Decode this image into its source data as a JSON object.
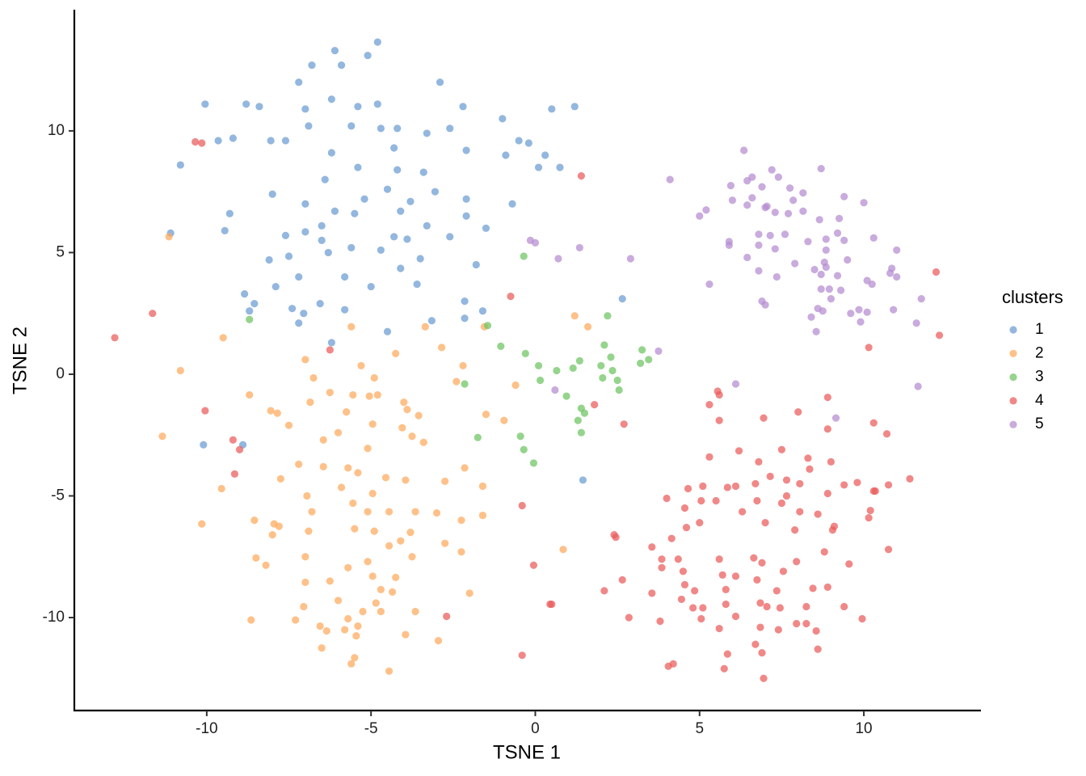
{
  "chart_data": {
    "type": "scatter",
    "x_label": "TSNE 1",
    "y_label": "TSNE 2",
    "legend_title": "clusters",
    "legend_position": "right",
    "xlim": [
      -14.03,
      13.54
    ],
    "ylim": [
      -13.82,
      14.98
    ],
    "xticks": [
      -10,
      -5,
      0,
      5,
      10
    ],
    "yticks": [
      -10,
      -5,
      0,
      5,
      10
    ],
    "grid": false,
    "series": [
      {
        "name": "1",
        "color": "#6a9bd1",
        "x": [
          -4.8,
          -5.1,
          -6.1,
          -6.8,
          -5.9,
          -7.2,
          -2.9,
          -10.05,
          -8.8,
          -8.4,
          -7.0,
          -6.2,
          -5.4,
          -4.8,
          -2.2,
          0.5,
          1.2,
          -1.0,
          -6.9,
          -5.6,
          -4.7,
          -4.2,
          -3.3,
          -2.6,
          -9.65,
          -9.2,
          -8.05,
          -7.6,
          -10.8,
          -6.2,
          -4.3,
          -2.1,
          -0.5,
          -0.2,
          -0.9,
          0.3,
          0.1,
          0.75,
          -5.4,
          -4.2,
          -3.4,
          -6.4,
          -8.0,
          -5.2,
          -4.5,
          -3.8,
          -3.05,
          -2.1,
          -0.7,
          -7.0,
          -6.1,
          -5.5,
          -4.1,
          -9.3,
          -11.1,
          -9.45,
          -7.6,
          -7.0,
          -6.5,
          -2.1,
          -1.5,
          -8.1,
          -7.5,
          -6.5,
          -6.3,
          -5.6,
          -4.7,
          -4.3,
          -3.9,
          -3.3,
          -2.6,
          -3.5,
          -1.8,
          -8.85,
          -7.9,
          -7.2,
          -5.8,
          -5.0,
          -4.1,
          -3.6,
          -8.55,
          -8.7,
          -7.4,
          -7.05,
          -6.55,
          -5.8,
          -7.2,
          -2.15,
          -1.6,
          -2.15,
          -3.15,
          -4.5,
          2.65,
          -6.2,
          -10.1,
          -8.9,
          1.45
        ],
        "values": [
          13.65,
          13.1,
          13.3,
          12.7,
          12.7,
          12.0,
          12.0,
          11.1,
          11.1,
          11.0,
          10.9,
          11.3,
          11.0,
          11.1,
          11.0,
          10.9,
          11.0,
          10.5,
          10.2,
          10.2,
          10.1,
          10.1,
          9.9,
          10.1,
          9.6,
          9.7,
          9.6,
          9.6,
          8.6,
          9.1,
          9.3,
          9.2,
          9.6,
          9.5,
          9.0,
          9.0,
          8.5,
          8.5,
          8.5,
          8.4,
          8.3,
          8.0,
          7.4,
          7.2,
          7.6,
          7.1,
          7.5,
          7.2,
          7.0,
          7.0,
          6.7,
          6.6,
          6.7,
          6.6,
          5.8,
          5.9,
          5.7,
          5.85,
          6.1,
          6.5,
          6.0,
          4.7,
          4.85,
          5.5,
          5.0,
          5.2,
          5.1,
          5.65,
          5.55,
          6.1,
          5.65,
          4.75,
          4.5,
          3.3,
          3.6,
          4.0,
          4.0,
          3.6,
          4.35,
          3.7,
          2.9,
          2.6,
          2.7,
          2.5,
          2.9,
          2.65,
          2.1,
          3.0,
          2.6,
          2.3,
          2.2,
          1.75,
          3.1,
          1.3,
          -2.9,
          -2.9,
          -4.35
        ]
      },
      {
        "name": "2",
        "color": "#fda95c",
        "x": [
          -11.15,
          -9.5,
          -5.6,
          -3.35,
          -1.55,
          1.2,
          1.6,
          -10.8,
          -7.0,
          -5.3,
          -4.25,
          -2.85,
          -2.2,
          -6.75,
          -4.9,
          -8.7,
          -6.25,
          -5.55,
          -5.05,
          -4.8,
          -4.0,
          -2.4,
          -0.6,
          -8.05,
          -7.85,
          -6.85,
          -5.75,
          -4.95,
          -3.9,
          -3.55,
          -1.5,
          -0.95,
          -11.35,
          -7.5,
          -6.45,
          -6.0,
          -5.1,
          -4.05,
          -3.75,
          -3.4,
          -7.2,
          -6.45,
          -5.7,
          -5.4,
          -4.55,
          -3.95,
          -2.15,
          -9.55,
          -7.75,
          -6.95,
          -5.9,
          -4.95,
          -2.75,
          -1.6,
          -8.55,
          -7.95,
          -6.8,
          -5.55,
          -5.1,
          -4.45,
          -3.65,
          -3.0,
          -2.25,
          -1.6,
          -10.15,
          -7.8,
          -8.0,
          -6.9,
          -5.5,
          -4.9,
          -3.8,
          -2.75,
          -4.1,
          -8.5,
          -8.2,
          -7.0,
          -5.7,
          -5.1,
          -4.45,
          -3.75,
          -2.25,
          0.85,
          -7.0,
          -6.25,
          -4.95,
          -4.25,
          -4.7,
          -4.35,
          -7.05,
          -6.0,
          -4.85,
          -3.65,
          -2.0,
          -8.65,
          -7.3,
          -5.7,
          -5.25,
          -4.7,
          -6.55,
          -6.35,
          -5.4,
          -5.8,
          -3.95,
          -6.5,
          -5.45,
          -2.95,
          -5.5,
          -5.6,
          -4.45
        ],
        "values": [
          5.65,
          1.5,
          1.95,
          1.95,
          1.95,
          2.4,
          1.95,
          0.15,
          0.6,
          0.35,
          0.85,
          1.1,
          0.35,
          -0.15,
          -0.15,
          -0.85,
          -0.75,
          -0.85,
          -0.9,
          -0.85,
          -1.15,
          -0.3,
          -0.45,
          -1.5,
          -1.6,
          -1.15,
          -1.55,
          -2.05,
          -1.45,
          -1.7,
          -1.65,
          -1.9,
          -2.55,
          -2.1,
          -2.7,
          -2.4,
          -3.05,
          -2.2,
          -2.55,
          -2.8,
          -3.7,
          -3.8,
          -3.85,
          -4.05,
          -4.25,
          -4.35,
          -3.85,
          -4.7,
          -4.3,
          -5.0,
          -4.65,
          -4.9,
          -4.4,
          -4.6,
          -6.0,
          -6.15,
          -5.65,
          -5.3,
          -5.65,
          -5.65,
          -5.65,
          -5.7,
          -6.0,
          -5.8,
          -6.15,
          -6.25,
          -6.6,
          -6.45,
          -6.35,
          -6.45,
          -6.5,
          -6.95,
          -6.85,
          -7.55,
          -7.85,
          -7.5,
          -7.95,
          -7.7,
          -7.05,
          -7.5,
          -7.3,
          -7.2,
          -8.55,
          -8.5,
          -8.3,
          -8.35,
          -8.85,
          -8.95,
          -9.55,
          -9.3,
          -9.4,
          -9.75,
          -9.0,
          -10.1,
          -10.1,
          -10.05,
          -9.75,
          -9.75,
          -10.35,
          -10.55,
          -10.35,
          -10.5,
          -10.7,
          -11.25,
          -10.75,
          -10.95,
          -11.65,
          -11.9,
          -12.2
        ]
      },
      {
        "name": "3",
        "color": "#6cc35f",
        "x": [
          -8.7,
          -0.35,
          2.2,
          -1.45,
          -1.05,
          -0.3,
          2.1,
          3.25,
          1.35,
          2.3,
          3.45,
          0.1,
          0.65,
          1.15,
          2.0,
          3.2,
          -2.15,
          0.15,
          2.35,
          2.05,
          2.5,
          0.95,
          2.55,
          1.4,
          1.5,
          1.3,
          1.4,
          -0.45,
          -1.75,
          -0.35,
          -0.05
        ],
        "values": [
          2.25,
          4.85,
          2.4,
          2.0,
          1.15,
          0.85,
          1.2,
          1.0,
          0.55,
          0.7,
          0.6,
          0.35,
          0.15,
          0.25,
          0.35,
          0.45,
          -0.4,
          -0.25,
          0.15,
          -0.15,
          -0.25,
          -0.9,
          -0.65,
          -1.4,
          -1.6,
          -1.9,
          -2.4,
          -2.55,
          -2.6,
          -3.1,
          -3.65
        ]
      },
      {
        "name": "4",
        "color": "#ea5a5a",
        "x": [
          -12.8,
          -11.65,
          -10.35,
          -10.15,
          1.4,
          -0.75,
          -6.25,
          -10.05,
          -9.2,
          -9.0,
          -9.15,
          12.2,
          12.3,
          10.15,
          1.8,
          2.7,
          5.55,
          5.6,
          5.3,
          5.6,
          8.9,
          8.0,
          6.95,
          8.9,
          10.3,
          10.7,
          6.2,
          7.5,
          5.3,
          6.8,
          8.3,
          9.0,
          8.35,
          7.15,
          5.1,
          5.85,
          6.1,
          6.7,
          7.65,
          8.05,
          9.4,
          9.8,
          10.3,
          10.75,
          11.4,
          4.65,
          4.0,
          5.05,
          5.5,
          6.75,
          7.65,
          8.9,
          10.35,
          -0.4,
          4.55,
          6.3,
          7.5,
          8.05,
          8.6,
          10.2,
          10.15,
          5.0,
          4.6,
          7.0,
          7.9,
          9.1,
          9.05,
          2.4,
          2.45,
          3.55,
          4.15,
          10.75,
          3.85,
          4.35,
          5.6,
          6.65,
          6.9,
          7.95,
          8.8,
          9.55,
          -0.05,
          3.85,
          4.5,
          5.7,
          6.1,
          6.75,
          7.55,
          2.65,
          4.55,
          8.9,
          2.1,
          3.55,
          4.85,
          5.8,
          7.35,
          8.45,
          4.45,
          4.8,
          5.1,
          5.8,
          6.85,
          7.05,
          7.45,
          8.25,
          9.4,
          0.45,
          0.5,
          -2.7,
          2.85,
          3.8,
          5.05,
          6.1,
          7.4,
          7.95,
          8.25,
          8.55,
          9.95,
          5.6,
          6.85,
          8.6,
          6.7,
          6.9,
          5.85,
          -0.4,
          4.2,
          4.05,
          5.75,
          6.95
        ],
        "values": [
          1.5,
          2.5,
          9.55,
          9.5,
          8.15,
          3.2,
          1.0,
          -1.5,
          -2.7,
          -3.1,
          -4.1,
          4.2,
          1.6,
          1.1,
          -1.25,
          -2.05,
          -0.7,
          -0.85,
          -1.25,
          -1.9,
          -0.95,
          -1.55,
          -1.8,
          -2.25,
          -2.0,
          -2.45,
          -3.15,
          -3.1,
          -3.4,
          -3.6,
          -3.45,
          -3.6,
          -3.9,
          -4.2,
          -4.6,
          -4.65,
          -4.6,
          -4.5,
          -4.35,
          -4.5,
          -4.55,
          -4.45,
          -4.8,
          -4.55,
          -4.3,
          -4.7,
          -5.1,
          -5.2,
          -5.2,
          -5.2,
          -5.0,
          -4.9,
          -4.8,
          -5.4,
          -5.5,
          -5.65,
          -5.3,
          -5.65,
          -5.75,
          -5.6,
          -5.9,
          -6.1,
          -6.3,
          -6.1,
          -6.4,
          -6.25,
          -6.4,
          -6.6,
          -6.7,
          -7.1,
          -6.75,
          -7.2,
          -7.6,
          -7.6,
          -7.6,
          -7.55,
          -7.75,
          -7.7,
          -7.3,
          -7.8,
          -7.85,
          -7.95,
          -8.1,
          -8.25,
          -8.3,
          -8.45,
          -8.1,
          -8.45,
          -8.65,
          -8.75,
          -8.9,
          -9.0,
          -8.9,
          -8.85,
          -8.9,
          -8.8,
          -9.25,
          -9.6,
          -9.6,
          -9.45,
          -9.4,
          -9.55,
          -9.6,
          -9.55,
          -9.55,
          -9.45,
          -9.45,
          -9.95,
          -10.0,
          -10.15,
          -10.05,
          -9.95,
          -10.5,
          -10.25,
          -10.25,
          -10.55,
          -10.05,
          -10.45,
          -10.4,
          -11.3,
          -11.1,
          -11.45,
          -11.5,
          -11.55,
          -11.9,
          -12.0,
          -12.1,
          -12.5
        ]
      },
      {
        "name": "5",
        "color": "#b48ad0",
        "x": [
          6.35,
          4.1,
          7.2,
          8.7,
          6.45,
          6.6,
          7.4,
          5.95,
          6.9,
          7.75,
          8.15,
          6.0,
          6.6,
          7.85,
          9.4,
          10.0,
          6.45,
          7.0,
          7.05,
          7.3,
          7.7,
          8.15,
          5.2,
          5.0,
          8.65,
          9.25,
          6.8,
          7.15,
          7.6,
          9.2,
          5.9,
          -0.15,
          0.0,
          6.8,
          8.3,
          8.85,
          9.4,
          10.3,
          1.35,
          7.3,
          8.85,
          5.9,
          11.0,
          0.7,
          2.9,
          6.45,
          7.9,
          8.8,
          9.5,
          8.85,
          10.85,
          6.8,
          8.5,
          8.7,
          10.8,
          7.35,
          9.2,
          11.0,
          5.3,
          10.1,
          10.25,
          8.7,
          8.95,
          9.3,
          9.0,
          11.75,
          6.9,
          7.0,
          8.6,
          8.75,
          9.6,
          9.85,
          10.1,
          10.9,
          8.4,
          9.9,
          11.6,
          8.55,
          3.75,
          6.1,
          11.65,
          0.6,
          9.15
        ],
        "values": [
          9.2,
          8.0,
          8.4,
          8.45,
          7.95,
          8.1,
          8.1,
          7.75,
          7.7,
          7.65,
          7.45,
          7.15,
          7.25,
          7.15,
          7.3,
          7.05,
          6.95,
          6.85,
          6.9,
          6.65,
          6.6,
          6.7,
          6.75,
          6.5,
          6.35,
          6.4,
          5.75,
          5.7,
          5.75,
          5.8,
          5.45,
          5.5,
          5.4,
          5.3,
          5.45,
          5.55,
          5.5,
          5.6,
          5.2,
          5.15,
          5.1,
          5.3,
          5.1,
          4.75,
          4.75,
          4.8,
          4.55,
          4.6,
          4.7,
          4.4,
          4.35,
          4.25,
          4.3,
          4.1,
          4.15,
          4.0,
          4.05,
          4.0,
          3.7,
          3.85,
          3.7,
          3.5,
          3.5,
          3.45,
          3.1,
          3.1,
          3.0,
          2.85,
          2.7,
          2.6,
          2.5,
          2.65,
          2.55,
          2.65,
          2.35,
          2.15,
          2.1,
          1.75,
          0.95,
          -0.4,
          -0.5,
          -0.65,
          -1.8
        ]
      }
    ]
  }
}
